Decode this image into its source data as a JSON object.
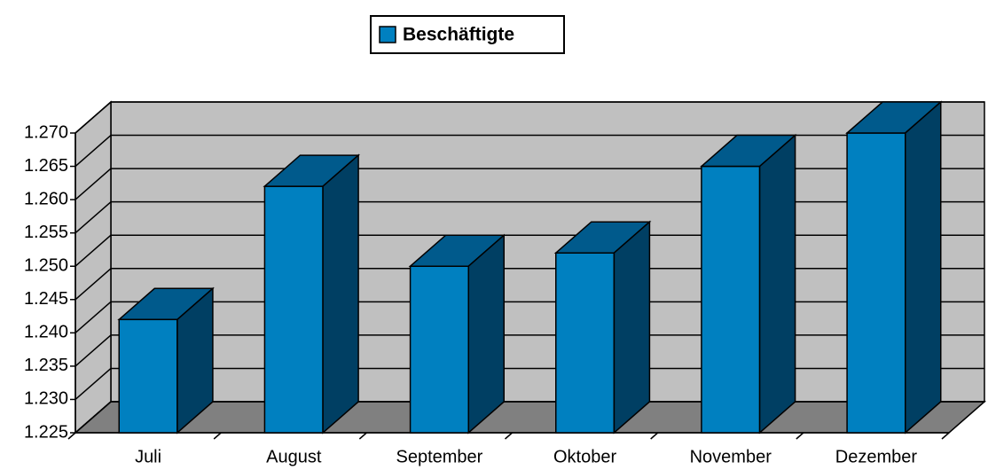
{
  "chart_data": {
    "type": "bar3d",
    "categories": [
      "Juli",
      "August",
      "September",
      "Oktober",
      "November",
      "Dezember"
    ],
    "series": [
      {
        "name": "Beschäftigte",
        "color": "#0080c0",
        "values": [
          1242,
          1262,
          1250,
          1252,
          1265,
          1270
        ]
      }
    ],
    "ylim": [
      1225,
      1270
    ],
    "yticks": [
      {
        "value": 1225,
        "label": "1.225"
      },
      {
        "value": 1230,
        "label": "1.230"
      },
      {
        "value": 1235,
        "label": "1.235"
      },
      {
        "value": 1240,
        "label": "1.240"
      },
      {
        "value": 1245,
        "label": "1.245"
      },
      {
        "value": 1250,
        "label": "1.250"
      },
      {
        "value": 1255,
        "label": "1.255"
      },
      {
        "value": 1260,
        "label": "1.260"
      },
      {
        "value": 1265,
        "label": "1.265"
      },
      {
        "value": 1270,
        "label": "1.270"
      }
    ],
    "grid": true,
    "legend": "top"
  }
}
